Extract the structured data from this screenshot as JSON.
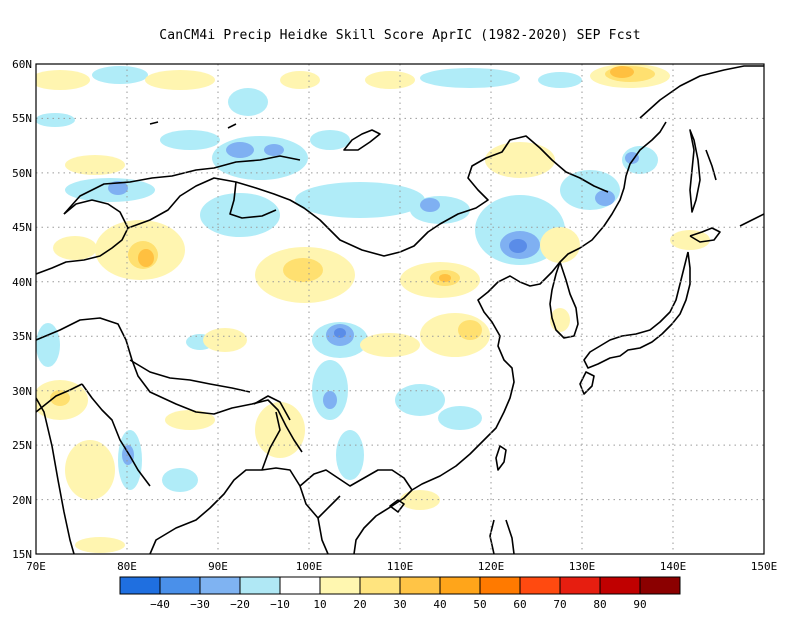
{
  "title": "CanCM4i Precip Heidke Skill Score AprIC (1982-2020) SEP Fcst",
  "map": {
    "lon_range": [
      70,
      150
    ],
    "lat_range": [
      15,
      60
    ],
    "lat_labels": [
      "60N",
      "55N",
      "50N",
      "45N",
      "40N",
      "35N",
      "30N",
      "25N",
      "20N",
      "15N"
    ],
    "lon_labels": [
      "70E",
      "80E",
      "90E",
      "100E",
      "110E",
      "120E",
      "130E",
      "140E",
      "150E"
    ],
    "gridlines": "dotted"
  },
  "colorbar": {
    "labels": [
      "-40",
      "-30",
      "-20",
      "-10",
      "10",
      "20",
      "30",
      "40",
      "50",
      "60",
      "70",
      "80",
      "90"
    ],
    "colors": [
      "#1f6fe0",
      "#4a90ea",
      "#7fb3f2",
      "#b0e8f5",
      "#ffffff",
      "#fff7b0",
      "#ffe47f",
      "#ffc446",
      "#ffa51a",
      "#ff7a00",
      "#ff4a10",
      "#e61e10",
      "#c00000",
      "#8b0000"
    ]
  },
  "palette": {
    "blue_dark": "#4a80e8",
    "blue_mid": "#7fb0f2",
    "blue_light": "#b0ecf8",
    "yellow_light": "#fff5b0",
    "yellow_mid": "#ffe070",
    "orange": "#ffc040",
    "orange_dark": "#f0a020"
  }
}
